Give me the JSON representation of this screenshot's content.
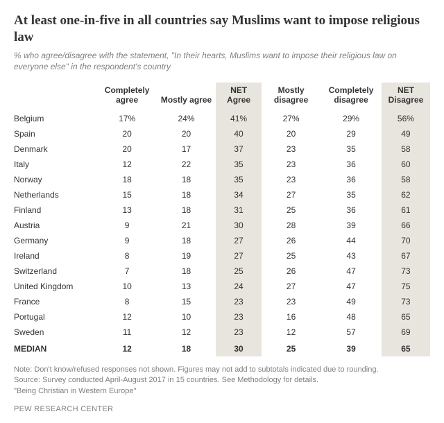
{
  "title": "At least one-in-five in all countries say Muslims want to impose religious law",
  "subtitle": "% who agree/disagree with the statement, \"In their hearts, Muslims want to impose their religious law on everyone else\" in the respondent's country",
  "columns": {
    "completely_agree": "Completely agree",
    "mostly_agree": "Mostly agree",
    "net_agree": "NET Agree",
    "mostly_disagree": "Mostly disagree",
    "completely_disagree": "Completely disagree",
    "net_disagree": "NET Disagree"
  },
  "rows": [
    {
      "label": "Belgium",
      "ca": "17%",
      "ma": "24%",
      "na": "41%",
      "md": "27%",
      "cd": "29%",
      "nd": "56%"
    },
    {
      "label": "Spain",
      "ca": "20",
      "ma": "20",
      "na": "40",
      "md": "20",
      "cd": "29",
      "nd": "49"
    },
    {
      "label": "Denmark",
      "ca": "20",
      "ma": "17",
      "na": "37",
      "md": "23",
      "cd": "35",
      "nd": "58"
    },
    {
      "label": "Italy",
      "ca": "12",
      "ma": "22",
      "na": "35",
      "md": "23",
      "cd": "36",
      "nd": "60"
    },
    {
      "label": "Norway",
      "ca": "18",
      "ma": "18",
      "na": "35",
      "md": "23",
      "cd": "36",
      "nd": "58"
    },
    {
      "label": "Netherlands",
      "ca": "15",
      "ma": "18",
      "na": "34",
      "md": "27",
      "cd": "35",
      "nd": "62"
    },
    {
      "label": "Finland",
      "ca": "13",
      "ma": "18",
      "na": "31",
      "md": "25",
      "cd": "36",
      "nd": "61"
    },
    {
      "label": "Austria",
      "ca": "9",
      "ma": "21",
      "na": "30",
      "md": "28",
      "cd": "39",
      "nd": "66"
    },
    {
      "label": "Germany",
      "ca": "9",
      "ma": "18",
      "na": "27",
      "md": "26",
      "cd": "44",
      "nd": "70"
    },
    {
      "label": "Ireland",
      "ca": "8",
      "ma": "19",
      "na": "27",
      "md": "25",
      "cd": "43",
      "nd": "67"
    },
    {
      "label": "Switzerland",
      "ca": "7",
      "ma": "18",
      "na": "25",
      "md": "26",
      "cd": "47",
      "nd": "73"
    },
    {
      "label": "United Kingdom",
      "ca": "10",
      "ma": "13",
      "na": "24",
      "md": "27",
      "cd": "47",
      "nd": "75"
    },
    {
      "label": "France",
      "ca": "8",
      "ma": "15",
      "na": "23",
      "md": "23",
      "cd": "49",
      "nd": "73"
    },
    {
      "label": "Portugal",
      "ca": "12",
      "ma": "10",
      "na": "23",
      "md": "16",
      "cd": "48",
      "nd": "65"
    },
    {
      "label": "Sweden",
      "ca": "11",
      "ma": "12",
      "na": "23",
      "md": "12",
      "cd": "57",
      "nd": "69"
    }
  ],
  "median": {
    "label": "MEDIAN",
    "ca": "12",
    "ma": "18",
    "na": "30",
    "md": "25",
    "cd": "39",
    "nd": "65"
  },
  "notes": {
    "line1": "Note: Don't know/refused responses not shown. Figures may not add to subtotals indicated due to rounding.",
    "line2": "Source: Survey conducted April-August 2017 in 15 countries. See Methodology for details.",
    "line3": "\"Being Christian in Western Europe\""
  },
  "footer": "PEW RESEARCH CENTER",
  "style": {
    "background": "#ffffff",
    "text_color": "#333333",
    "muted_color": "#808080",
    "net_bg": "#e8e5df",
    "title_fontsize": 19,
    "body_fontsize": 12,
    "notes_fontsize": 11
  }
}
